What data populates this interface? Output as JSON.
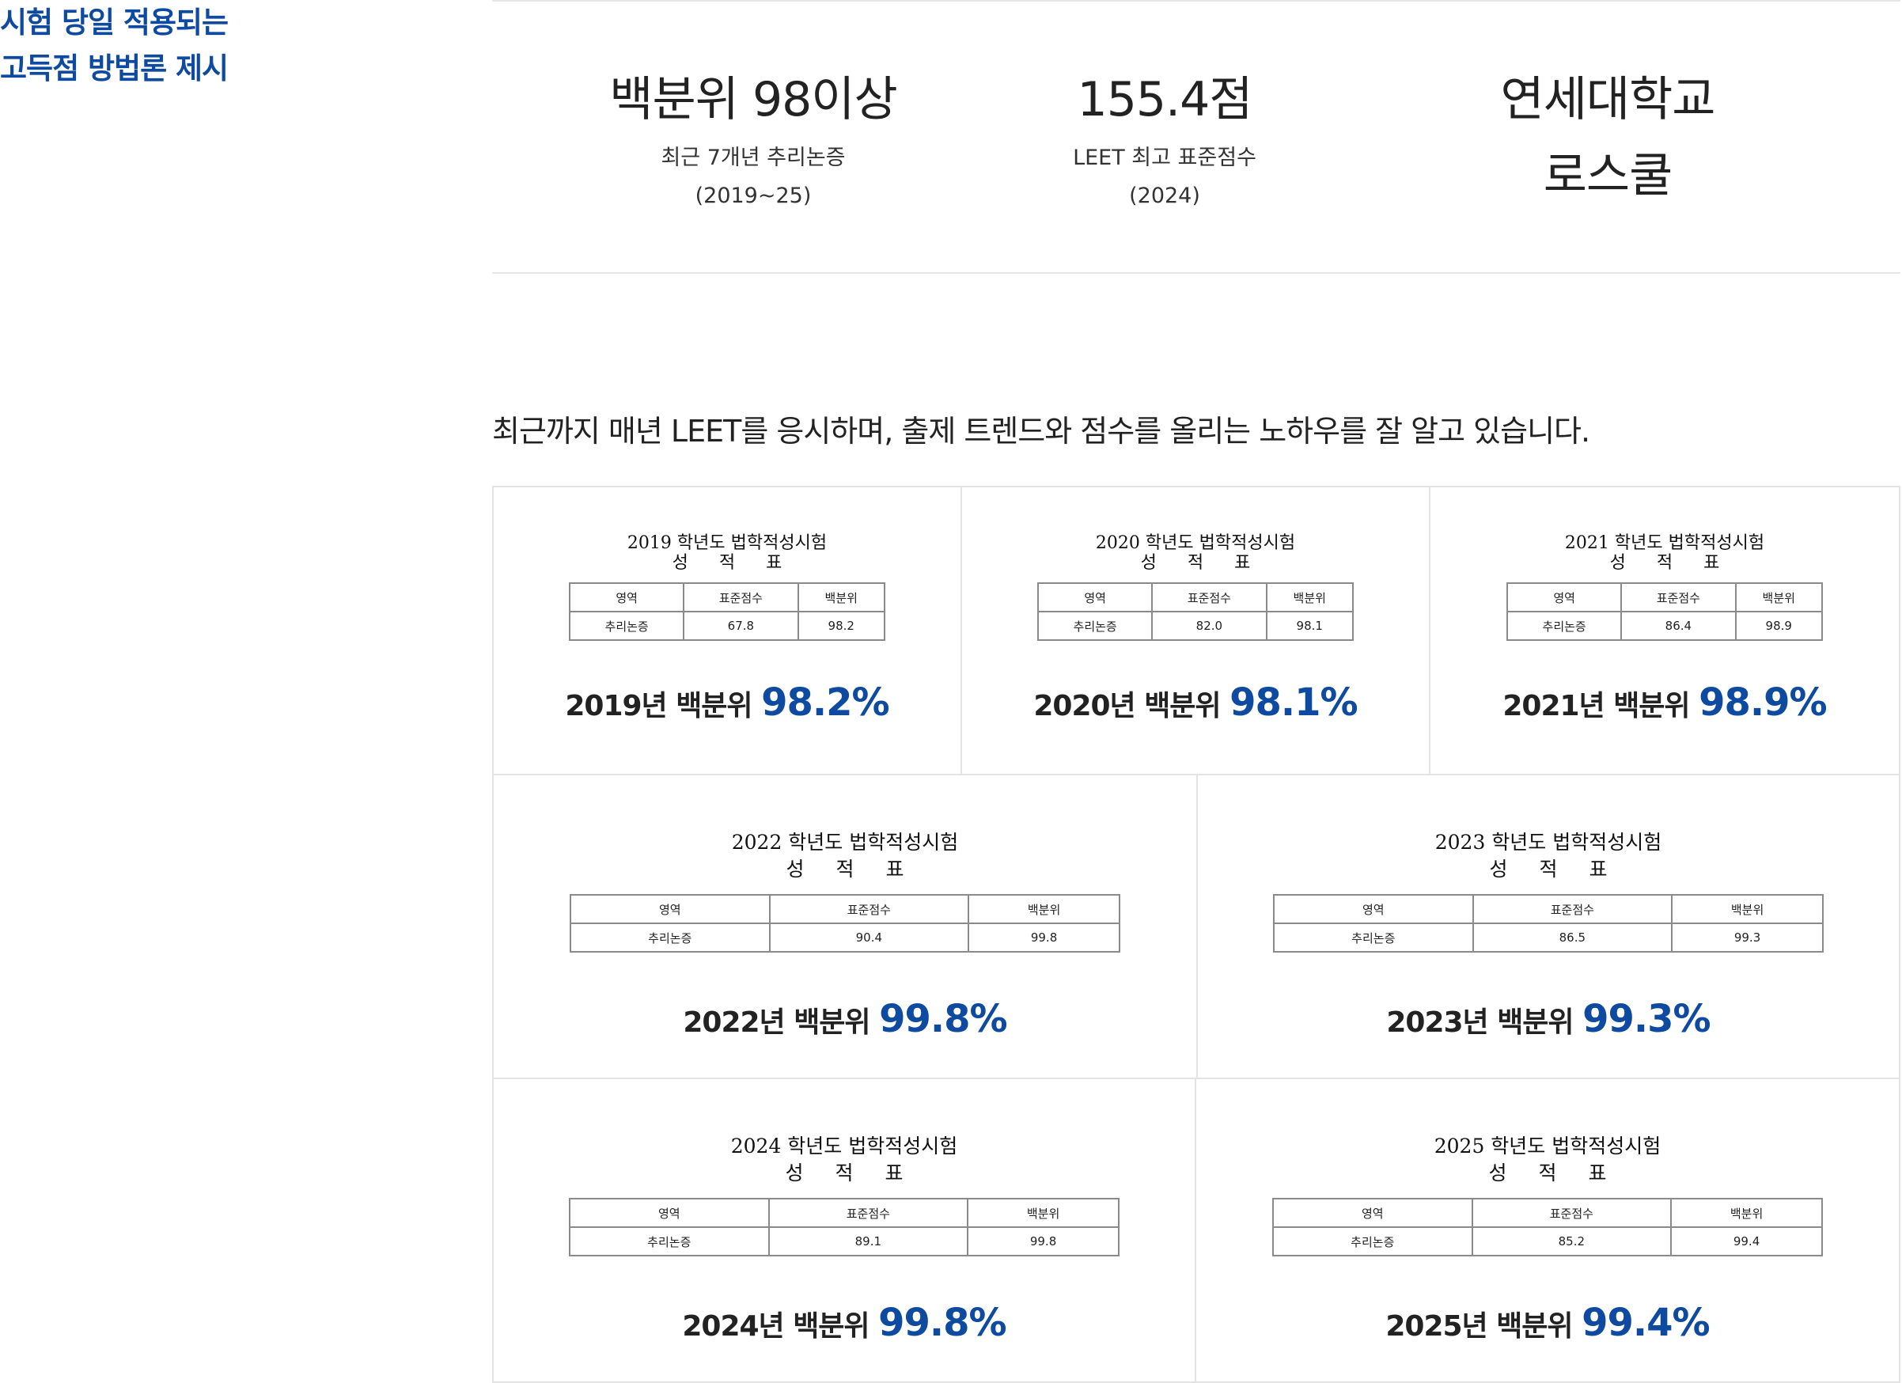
{
  "side_title": {
    "line1": "시험 당일 적용되는",
    "line2": "고득점 방법론 제시"
  },
  "stats": [
    {
      "big": "백분위 98이상",
      "small1": "최근 7개년 추리논증",
      "small2": "(2019~25)"
    },
    {
      "big": "155.4점",
      "small1": "LEET 최고 표준점수",
      "small2": "(2024)"
    },
    {
      "big1": "연세대학교",
      "big2": "로스쿨"
    }
  ],
  "intro": "최근까지 매년 LEET를 응시하며, 출제 트렌드와 점수를 올리는 노하우를 잘 알고 있습니다.",
  "table_headers": {
    "area": "영역",
    "std": "표준점수",
    "pct": "백분위"
  },
  "cards": [
    {
      "head1": "2019 학년도 법학적성시험",
      "head2": "성 적 표",
      "area": "추리논증",
      "std": "67.8",
      "pct": "98.2",
      "result_label": "2019년 백분위",
      "result_value": "98.2%"
    },
    {
      "head1": "2020 학년도 법학적성시험",
      "head2": "성 적 표",
      "area": "추리논증",
      "std": "82.0",
      "pct": "98.1",
      "result_label": "2020년 백분위",
      "result_value": "98.1%"
    },
    {
      "head1": "2021 학년도 법학적성시험",
      "head2": "성 적 표",
      "area": "추리논증",
      "std": "86.4",
      "pct": "98.9",
      "result_label": "2021년 백분위",
      "result_value": "98.9%"
    },
    {
      "head1": "2022 학년도 법학적성시험",
      "head2": "성 적 표",
      "area": "추리논증",
      "std": "90.4",
      "pct": "99.8",
      "result_label": "2022년 백분위",
      "result_value": "99.8%"
    },
    {
      "head1": "2023 학년도 법학적성시험",
      "head2": "성 적 표",
      "area": "추리논증",
      "std": "86.5",
      "pct": "99.3",
      "result_label": "2023년 백분위",
      "result_value": "99.3%"
    },
    {
      "head1": "2024 학년도 법학적성시험",
      "head2": "성 적 표",
      "area": "추리논증",
      "std": "89.1",
      "pct": "99.8",
      "result_label": "2024년 백분위",
      "result_value": "99.8%"
    },
    {
      "head1": "2025 학년도 법학적성시험",
      "head2": "성 적 표",
      "area": "추리논증",
      "std": "85.2",
      "pct": "99.4",
      "result_label": "2025년 백분위",
      "result_value": "99.4%"
    }
  ]
}
